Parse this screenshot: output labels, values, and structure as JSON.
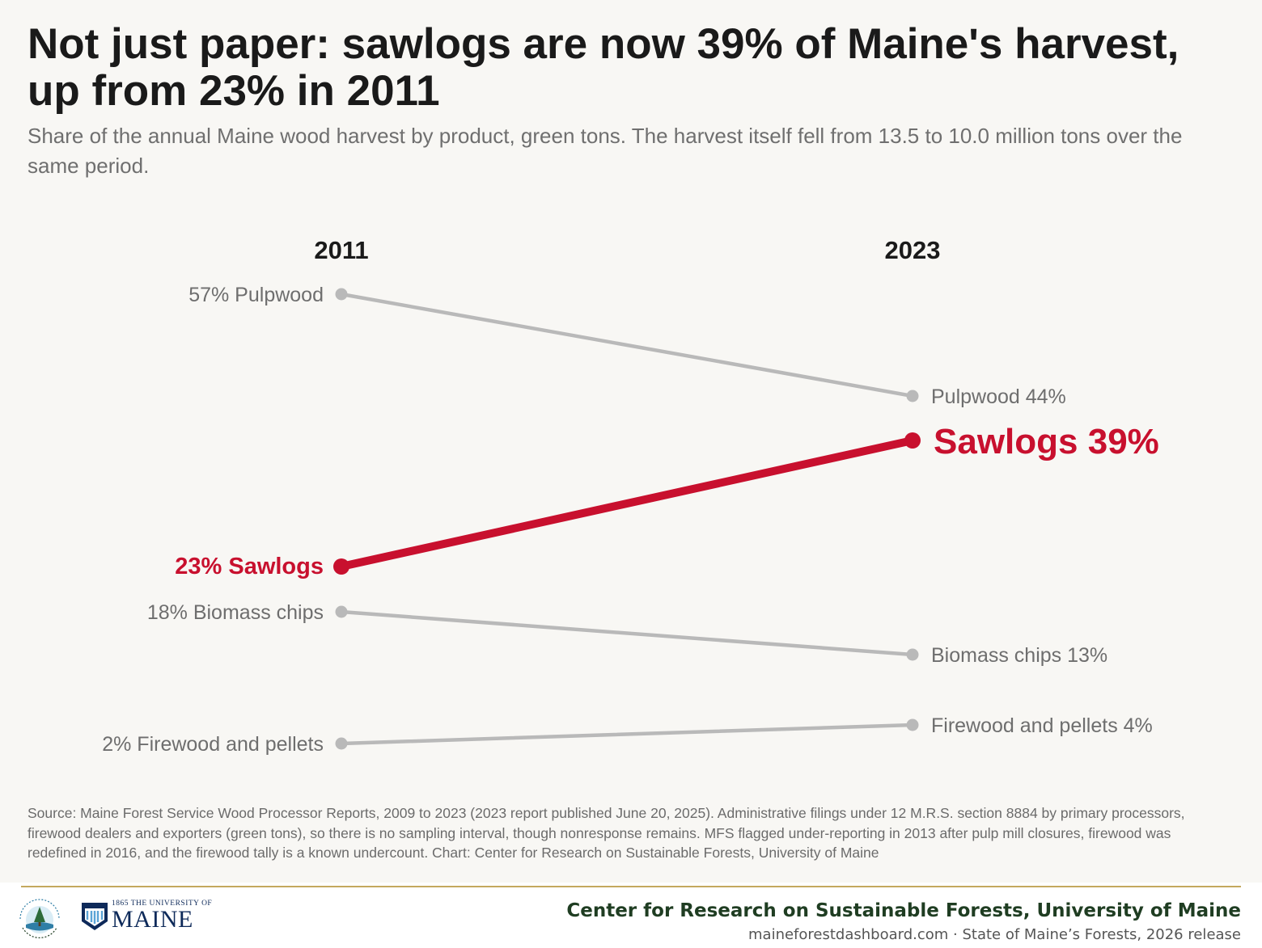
{
  "title": "Not just paper: sawlogs are now 39% of Maine's harvest, up from 23% in 2011",
  "subtitle": "Share of the annual Maine wood harvest by product, green tons. The harvest itself fell from 13.5 to 10.0 million tons over the same period.",
  "source": "Source: Maine Forest Service Wood Processor Reports, 2009 to 2023 (2023 report published June 20, 2025). Administrative filings under 12 M.R.S. section 8884 by primary processors, firewood dealers and exporters (green tons), so there is no sampling interval, though nonresponse remains. MFS flagged under-reporting in 2013 after pulp mill closures, firewood was redefined in 2016, and the firewood tally is a known undercount. Chart: Center for Research on Sustainable Forests, University of Maine",
  "footer": {
    "org": "Center for Research on Sustainable Forests, University of Maine",
    "meta": "maineforestdashboard.com  ·  State of Maine’s Forests, 2026 release",
    "umaine_small": "1865 THE UNIVERSITY OF",
    "umaine_big": "MAINE",
    "crsf_logo_text": "Center for Research on Sustainable Forests"
  },
  "chart_data": {
    "type": "line",
    "x": [
      "2011",
      "2023"
    ],
    "unit": "%",
    "highlight": "Sawlogs",
    "colors": {
      "highlight": "#c8102e",
      "muted": "#b9b9b9",
      "muted_text": "#6e6e6e",
      "year_label": "#1a1a1a"
    },
    "series": [
      {
        "name": "Pulpwood",
        "values": [
          57,
          44
        ]
      },
      {
        "name": "Sawlogs",
        "values": [
          23,
          39
        ]
      },
      {
        "name": "Biomass chips",
        "values": [
          18,
          13
        ]
      },
      {
        "name": "Firewood and pellets",
        "values": [
          2,
          4
        ]
      }
    ]
  }
}
